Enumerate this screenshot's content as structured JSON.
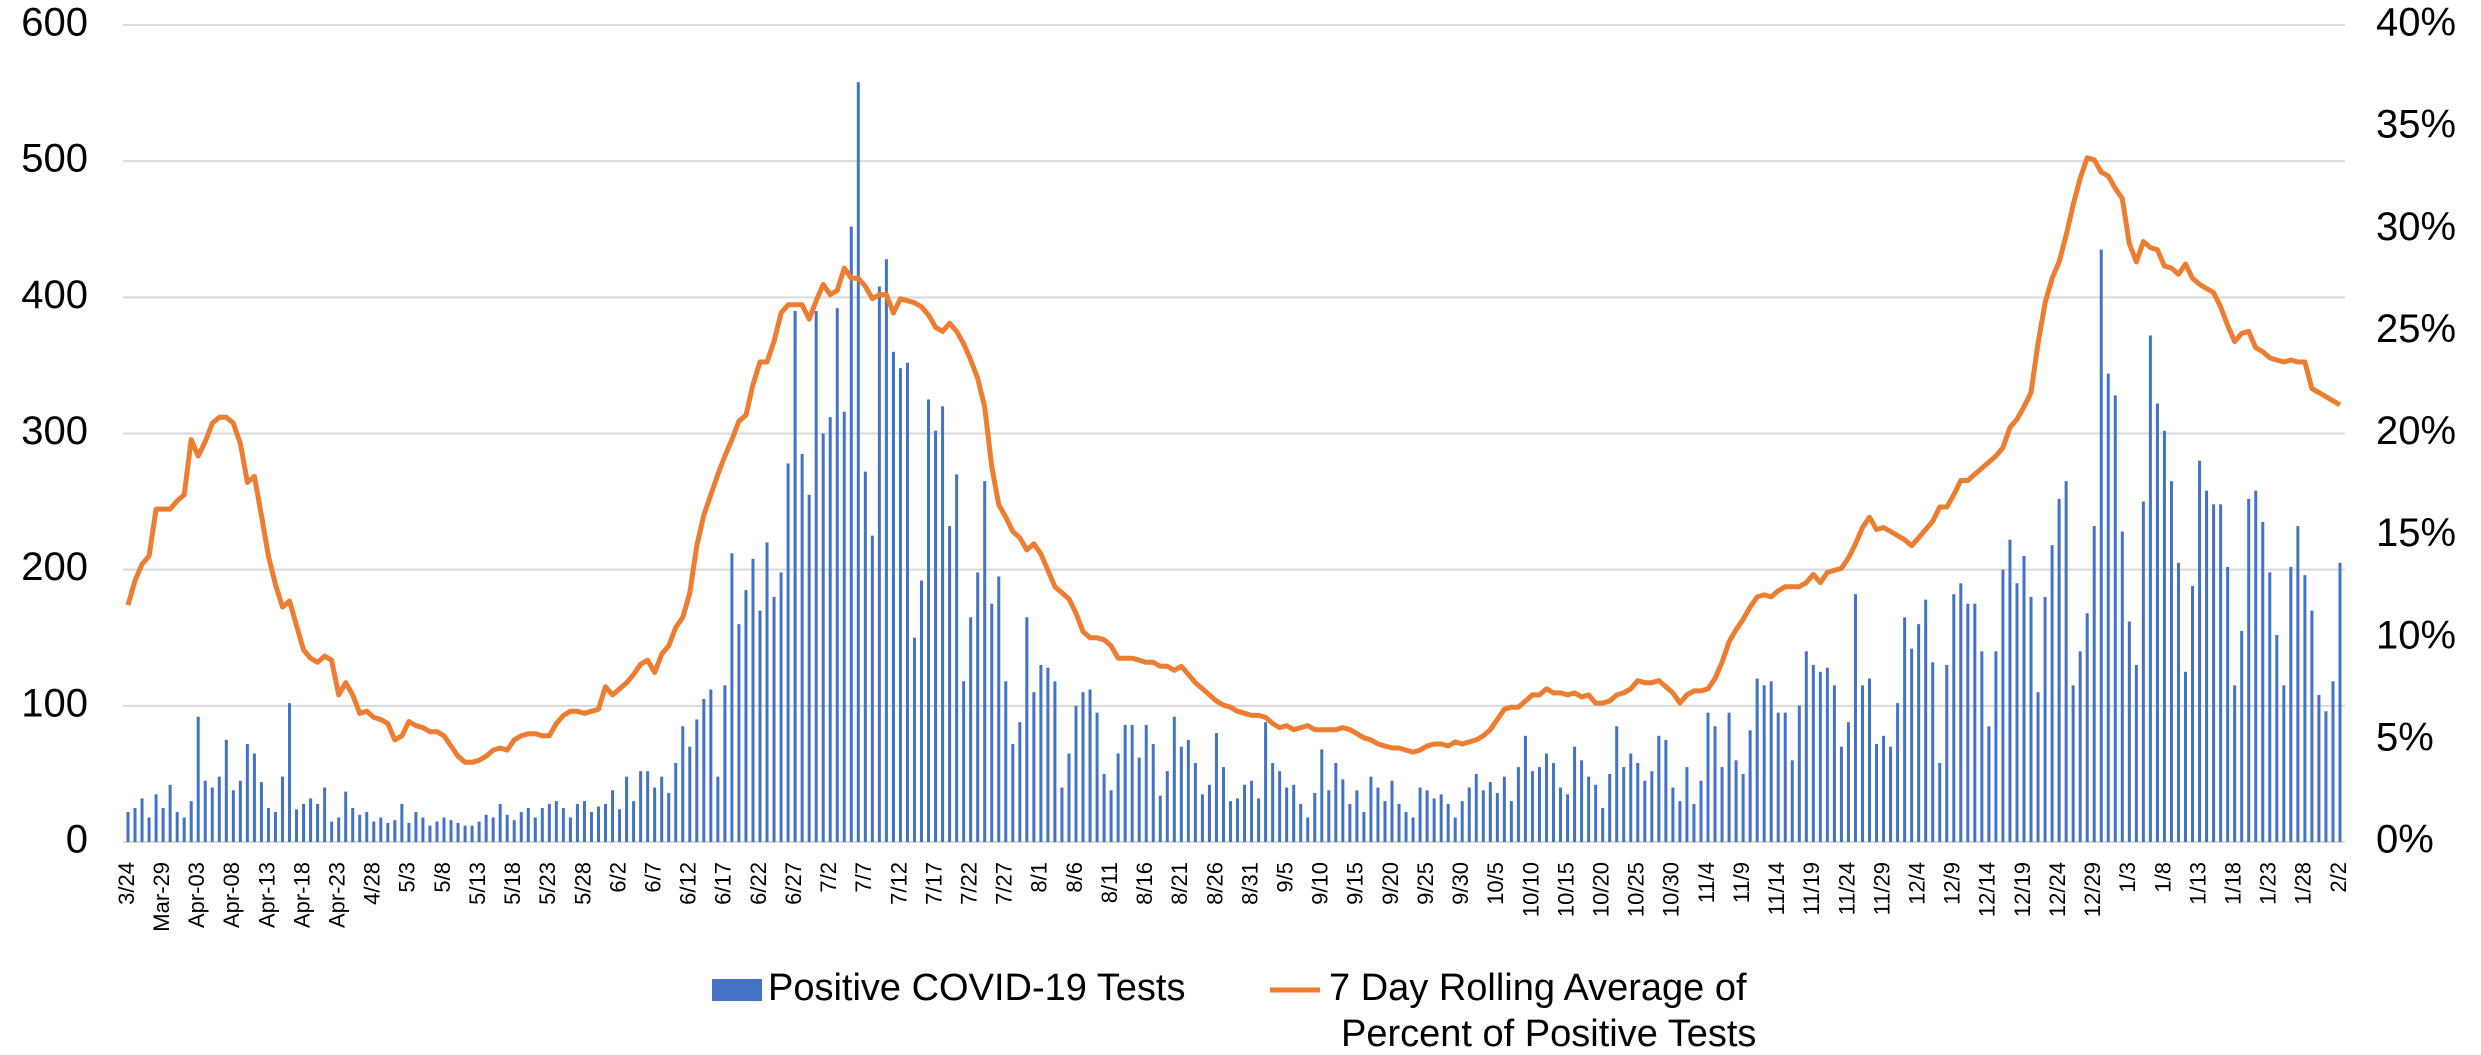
{
  "chart_data": {
    "type": "bar-line",
    "categories": [
      "3/24",
      null,
      null,
      null,
      null,
      "Mar-29",
      null,
      null,
      null,
      null,
      "Apr-03",
      null,
      null,
      null,
      null,
      "Apr-08",
      null,
      null,
      null,
      null,
      "Apr-13",
      null,
      null,
      null,
      null,
      "Apr-18",
      null,
      null,
      null,
      null,
      "Apr-23",
      null,
      null,
      null,
      null,
      "4/28",
      null,
      null,
      null,
      null,
      "5/3",
      null,
      null,
      null,
      null,
      "5/8",
      null,
      null,
      null,
      null,
      "5/13",
      null,
      null,
      null,
      null,
      "5/18",
      null,
      null,
      null,
      null,
      "5/23",
      null,
      null,
      null,
      null,
      "5/28",
      null,
      null,
      null,
      null,
      "6/2",
      null,
      null,
      null,
      null,
      "6/7",
      null,
      null,
      null,
      null,
      "6/12",
      null,
      null,
      null,
      null,
      "6/17",
      null,
      null,
      null,
      null,
      "6/22",
      null,
      null,
      null,
      null,
      "6/27",
      null,
      null,
      null,
      null,
      "7/2",
      null,
      null,
      null,
      null,
      "7/7",
      null,
      null,
      null,
      null,
      "7/12",
      null,
      null,
      null,
      null,
      "7/17",
      null,
      null,
      null,
      null,
      "7/22",
      null,
      null,
      null,
      null,
      "7/27",
      null,
      null,
      null,
      null,
      "8/1",
      null,
      null,
      null,
      null,
      "8/6",
      null,
      null,
      null,
      null,
      "8/11",
      null,
      null,
      null,
      null,
      "8/16",
      null,
      null,
      null,
      null,
      "8/21",
      null,
      null,
      null,
      null,
      "8/26",
      null,
      null,
      null,
      null,
      "8/31",
      null,
      null,
      null,
      null,
      "9/5",
      null,
      null,
      null,
      null,
      "9/10",
      null,
      null,
      null,
      null,
      "9/15",
      null,
      null,
      null,
      null,
      "9/20",
      null,
      null,
      null,
      null,
      "9/25",
      null,
      null,
      null,
      null,
      "9/30",
      null,
      null,
      null,
      null,
      "10/5",
      null,
      null,
      null,
      null,
      "10/10",
      null,
      null,
      null,
      null,
      "10/15",
      null,
      null,
      null,
      null,
      "10/20",
      null,
      null,
      null,
      null,
      "10/25",
      null,
      null,
      null,
      null,
      "10/30",
      null,
      null,
      null,
      null,
      "11/4",
      null,
      null,
      null,
      null,
      "11/9",
      null,
      null,
      null,
      null,
      "11/14",
      null,
      null,
      null,
      null,
      "11/19",
      null,
      null,
      null,
      null,
      "11/24",
      null,
      null,
      null,
      null,
      "11/29",
      null,
      null,
      null,
      null,
      "12/4",
      null,
      null,
      null,
      null,
      "12/9",
      null,
      null,
      null,
      null,
      "12/14",
      null,
      null,
      null,
      null,
      "12/19",
      null,
      null,
      null,
      null,
      "12/24",
      null,
      null,
      null,
      null,
      "12/29",
      null,
      null,
      null,
      null,
      "1/3",
      null,
      null,
      null,
      null,
      "1/8",
      null,
      null,
      null,
      null,
      "1/13",
      null,
      null,
      null,
      null,
      "1/18",
      null,
      null,
      null,
      null,
      "1/23",
      null,
      null,
      null,
      null,
      "1/28",
      null,
      null,
      null,
      null,
      "2/2"
    ],
    "series": [
      {
        "name": "Positive COVID-19 Tests",
        "type": "bar",
        "color": "#4472c4",
        "values": [
          22,
          25,
          32,
          18,
          35,
          25,
          42,
          22,
          18,
          30,
          92,
          45,
          40,
          48,
          75,
          38,
          45,
          72,
          65,
          44,
          25,
          22,
          48,
          102,
          24,
          28,
          32,
          28,
          40,
          15,
          18,
          37,
          25,
          20,
          22,
          15,
          18,
          14,
          16,
          28,
          14,
          22,
          18,
          12,
          15,
          18,
          16,
          14,
          12,
          12,
          15,
          20,
          18,
          28,
          20,
          16,
          22,
          25,
          18,
          25,
          28,
          30,
          25,
          18,
          28,
          30,
          22,
          26,
          28,
          38,
          24,
          48,
          30,
          52,
          52,
          40,
          48,
          36,
          58,
          85,
          70,
          90,
          105,
          112,
          48,
          115,
          212,
          160,
          185,
          208,
          170,
          220,
          180,
          198,
          278,
          390,
          285,
          255,
          390,
          300,
          312,
          392,
          316,
          452,
          558,
          272,
          225,
          408,
          428,
          360,
          348,
          352,
          150,
          192,
          325,
          302,
          320,
          232,
          270,
          118,
          165,
          198,
          265,
          175,
          195,
          118,
          72,
          88,
          165,
          110,
          130,
          128,
          118,
          40,
          65,
          100,
          110,
          112,
          95,
          50,
          38,
          65,
          86,
          86,
          62,
          86,
          72,
          34,
          52,
          92,
          70,
          75,
          58,
          35,
          42,
          80,
          55,
          30,
          32,
          42,
          45,
          32,
          88,
          58,
          52,
          40,
          42,
          28,
          18,
          36,
          68,
          38,
          58,
          46,
          28,
          38,
          22,
          48,
          40,
          30,
          45,
          28,
          22,
          18,
          40,
          38,
          32,
          35,
          28,
          18,
          30,
          40,
          50,
          38,
          44,
          36,
          48,
          30,
          55,
          78,
          52,
          55,
          65,
          58,
          40,
          35,
          70,
          60,
          48,
          42,
          25,
          50,
          85,
          55,
          65,
          58,
          45,
          52,
          78,
          75,
          40,
          30,
          55,
          28,
          45,
          95,
          85,
          55,
          95,
          60,
          50,
          82,
          120,
          115,
          118,
          95,
          95,
          60,
          100,
          140,
          130,
          125,
          128,
          115,
          70,
          88,
          182,
          115,
          120,
          72,
          78,
          70,
          102,
          165,
          142,
          160,
          178,
          132,
          58,
          130,
          182,
          190,
          175,
          175,
          140,
          85,
          140,
          200,
          222,
          190,
          210,
          180,
          110,
          180,
          218,
          252,
          265,
          115,
          140,
          168,
          232,
          435,
          344,
          328,
          228,
          162,
          130,
          250,
          372,
          322,
          302,
          265,
          205,
          125,
          188,
          280,
          258,
          248,
          248,
          202,
          115,
          155,
          252,
          258,
          235,
          198,
          152,
          115,
          202,
          232,
          196,
          170,
          108,
          96,
          118,
          205
        ]
      },
      {
        "name": "7 Day Rolling Average of Percent of Positive Tests",
        "type": "line",
        "axis": "y2",
        "color": "#ed7d31",
        "values": [
          11.6,
          12.8,
          13.6,
          14.0,
          16.3,
          16.3,
          16.3,
          16.7,
          17.0,
          19.7,
          18.9,
          19.6,
          20.5,
          20.8,
          20.8,
          20.5,
          19.5,
          17.6,
          17.9,
          16.0,
          14.0,
          12.6,
          11.5,
          11.8,
          10.6,
          9.4,
          9.0,
          8.8,
          9.1,
          8.9,
          7.2,
          7.8,
          7.2,
          6.3,
          6.4,
          6.1,
          6.0,
          5.8,
          5.0,
          5.2,
          5.9,
          5.7,
          5.6,
          5.4,
          5.4,
          5.2,
          4.7,
          4.2,
          3.9,
          3.9,
          4.0,
          4.2,
          4.5,
          4.6,
          4.5,
          5.0,
          5.2,
          5.3,
          5.3,
          5.2,
          5.2,
          5.8,
          6.2,
          6.4,
          6.4,
          6.3,
          6.4,
          6.5,
          7.6,
          7.2,
          7.5,
          7.8,
          8.2,
          8.7,
          8.9,
          8.3,
          9.2,
          9.6,
          10.5,
          11.0,
          12.2,
          14.5,
          16.0,
          17.0,
          18.0,
          18.9,
          19.7,
          20.6,
          20.9,
          22.4,
          23.5,
          23.5,
          24.5,
          25.9,
          26.3,
          26.3,
          26.3,
          25.6,
          26.5,
          27.3,
          26.8,
          27.0,
          28.1,
          27.6,
          27.6,
          27.2,
          26.6,
          26.8,
          26.8,
          25.9,
          26.6,
          26.5,
          26.4,
          26.2,
          25.8,
          25.2,
          25.0,
          25.4,
          25.0,
          24.4,
          23.6,
          22.7,
          21.3,
          18.4,
          16.5,
          15.9,
          15.2,
          14.9,
          14.3,
          14.6,
          14.1,
          13.3,
          12.5,
          12.2,
          11.9,
          11.2,
          10.3,
          10.0,
          10.0,
          9.9,
          9.6,
          9.0,
          9.0,
          9.0,
          8.9,
          8.8,
          8.8,
          8.6,
          8.6,
          8.4,
          8.6,
          8.2,
          7.8,
          7.5,
          7.2,
          6.9,
          6.7,
          6.6,
          6.4,
          6.3,
          6.2,
          6.2,
          6.1,
          5.8,
          5.6,
          5.7,
          5.5,
          5.6,
          5.7,
          5.5,
          5.5,
          5.5,
          5.5,
          5.6,
          5.5,
          5.3,
          5.1,
          5.0,
          4.8,
          4.7,
          4.6,
          4.6,
          4.5,
          4.4,
          4.5,
          4.7,
          4.8,
          4.8,
          4.7,
          4.9,
          4.8,
          4.9,
          5.0,
          5.2,
          5.5,
          6.0,
          6.5,
          6.6,
          6.6,
          6.9,
          7.2,
          7.2,
          7.5,
          7.3,
          7.3,
          7.2,
          7.3,
          7.1,
          7.2,
          6.8,
          6.8,
          6.9,
          7.2,
          7.3,
          7.5,
          7.9,
          7.8,
          7.8,
          7.9,
          7.6,
          7.3,
          6.8,
          7.2,
          7.4,
          7.4,
          7.5,
          8.0,
          8.8,
          9.8,
          10.4,
          10.9,
          11.5,
          12.0,
          12.1,
          12.0,
          12.3,
          12.5,
          12.5,
          12.5,
          12.7,
          13.1,
          12.7,
          13.2,
          13.3,
          13.4,
          13.9,
          14.6,
          15.4,
          15.9,
          15.3,
          15.4,
          15.2,
          15.0,
          14.8,
          14.5,
          14.9,
          15.3,
          15.7,
          16.4,
          16.4,
          17.0,
          17.7,
          17.7,
          18.0,
          18.3,
          18.6,
          18.9,
          19.3,
          20.3,
          20.7,
          21.3,
          22.0,
          24.4,
          26.4,
          27.6,
          28.4,
          29.7,
          31.2,
          32.5,
          33.5,
          33.4,
          32.8,
          32.6,
          32.0,
          31.5,
          29.3,
          28.4,
          29.4,
          29.1,
          29.0,
          28.2,
          28.1,
          27.8,
          28.3,
          27.6,
          27.3,
          27.1,
          26.9,
          26.2,
          25.3,
          24.5,
          24.9,
          25.0,
          24.2,
          24.0,
          23.7,
          23.6,
          23.5,
          23.6,
          23.5,
          23.5,
          22.2,
          22.0,
          21.8,
          21.6,
          21.4
        ]
      }
    ],
    "ylim": [
      0,
      600
    ],
    "yticks": [
      0,
      100,
      200,
      300,
      400,
      500,
      600
    ],
    "y2lim": [
      0,
      40
    ],
    "y2ticks": [
      {
        "value": 0,
        "label": "0%"
      },
      {
        "value": 5,
        "label": "5%"
      },
      {
        "value": 10,
        "label": "10%"
      },
      {
        "value": 15,
        "label": "15%"
      },
      {
        "value": 20,
        "label": "20%"
      },
      {
        "value": 25,
        "label": "25%"
      },
      {
        "value": 30,
        "label": "30%"
      },
      {
        "value": 35,
        "label": "35%"
      },
      {
        "value": 40,
        "label": "40%"
      }
    ],
    "grid": true,
    "legend": "bottom"
  }
}
